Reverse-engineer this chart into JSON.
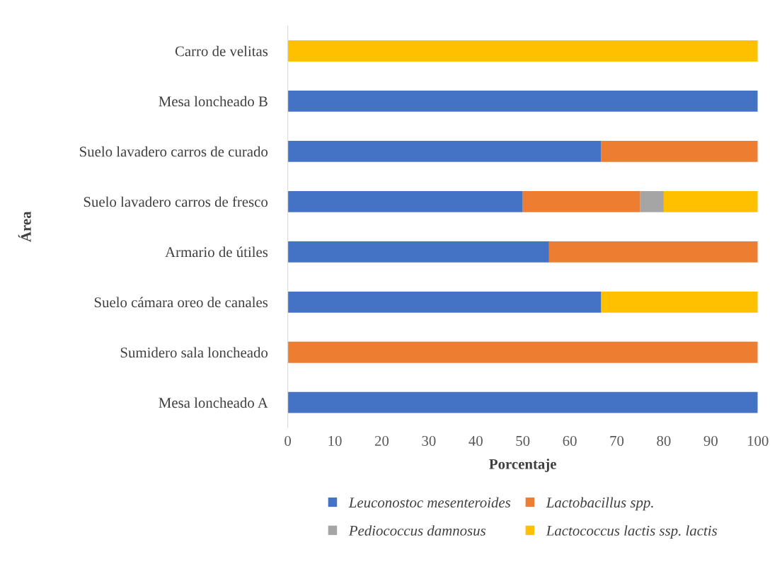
{
  "chart_data": {
    "type": "bar",
    "orientation": "horizontal",
    "stacked": true,
    "xlabel": "Porcentaje",
    "ylabel": "Área",
    "categories": [
      "Carro de velitas",
      "Mesa loncheado B",
      "Suelo lavadero carros de curado",
      "Suelo lavadero carros de fresco",
      "Armario de útiles",
      "Suelo cámara oreo de canales",
      "Sumidero sala loncheado",
      "Mesa loncheado A"
    ],
    "series": [
      {
        "name": "Leuconostoc mesenteroides",
        "color": "#4472c4",
        "values": [
          null,
          100,
          66.7,
          50,
          55.6,
          66.7,
          null,
          100
        ]
      },
      {
        "name": "Lactobacillus spp.",
        "color": "#ed7d31",
        "values": [
          null,
          null,
          33.3,
          25,
          44.4,
          null,
          100,
          null
        ]
      },
      {
        "name": "Pediococcus damnosus",
        "color": "#a5a5a5",
        "values": [
          null,
          null,
          null,
          5,
          null,
          null,
          null,
          null
        ]
      },
      {
        "name": "Lactococcus lactis ssp. lactis",
        "color": "#ffc000",
        "values": [
          100,
          null,
          null,
          20,
          null,
          33.3,
          null,
          null
        ]
      }
    ],
    "xlim": [
      0,
      100
    ],
    "xticks": [
      0,
      10,
      20,
      30,
      40,
      50,
      60,
      70,
      80,
      90,
      100
    ],
    "grid": false,
    "legend": "bottom"
  }
}
